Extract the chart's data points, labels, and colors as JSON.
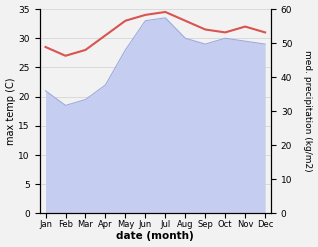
{
  "months": [
    "Jan",
    "Feb",
    "Mar",
    "Apr",
    "May",
    "Jun",
    "Jul",
    "Aug",
    "Sep",
    "Oct",
    "Nov",
    "Dec"
  ],
  "max_temp": [
    28.5,
    27.0,
    28.0,
    30.5,
    33.0,
    34.0,
    34.5,
    33.0,
    31.5,
    31.0,
    32.0,
    31.0
  ],
  "precipitation_left_scale": [
    21.0,
    18.5,
    19.5,
    22.0,
    28.0,
    33.0,
    33.5,
    30.0,
    29.0,
    30.0,
    29.5,
    29.0
  ],
  "temp_color": "#d9534f",
  "precip_fill_color": "#c5cdf0",
  "precip_line_color": "#a0aade",
  "temp_ylim": [
    0,
    35
  ],
  "precip_ylim": [
    0,
    60
  ],
  "temp_yticks": [
    0,
    5,
    10,
    15,
    20,
    25,
    30,
    35
  ],
  "precip_yticks": [
    0,
    10,
    20,
    30,
    40,
    50,
    60
  ],
  "xlabel": "date (month)",
  "ylabel_left": "max temp (C)",
  "ylabel_right": "med. precipitation (kg/m2)",
  "background_color": "#f2f2f2",
  "grid_color": "#d0d0d0"
}
